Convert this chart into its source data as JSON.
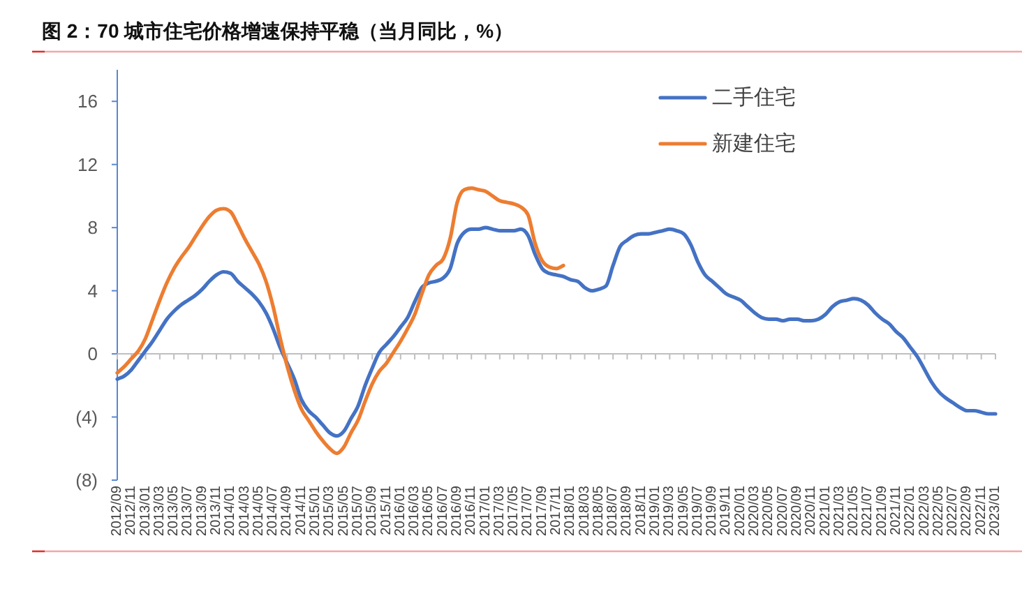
{
  "chart_data": {
    "type": "line",
    "title": "图 2：70 城市住宅价格增速保持平稳（当月同比，%）",
    "categories": [
      "2012/09",
      null,
      "2012/11",
      null,
      "2013/01",
      null,
      "2013/03",
      null,
      "2013/05",
      null,
      "2013/07",
      null,
      "2013/09",
      null,
      "2013/11",
      null,
      "2014/01",
      null,
      "2014/03",
      null,
      "2014/05",
      null,
      "2014/07",
      null,
      "2014/09",
      null,
      "2014/11",
      null,
      "2015/01",
      null,
      "2015/03",
      null,
      "2015/05",
      null,
      "2015/07",
      null,
      "2015/09",
      null,
      "2015/11",
      null,
      "2016/01",
      null,
      "2016/03",
      null,
      "2016/05",
      null,
      "2016/07",
      null,
      "2016/09",
      null,
      "2016/11",
      null,
      "2017/01",
      null,
      "2017/03",
      null,
      "2017/05",
      null,
      "2017/07",
      null,
      "2017/09",
      null,
      "2017/11",
      null,
      "2018/01",
      null,
      "2018/03",
      null,
      "2018/05",
      null,
      "2018/07",
      null,
      "2018/09",
      null,
      "2018/11",
      null,
      "2019/01",
      null,
      "2019/03",
      null,
      "2019/05",
      null,
      "2019/07",
      null,
      "2019/09",
      null,
      "2019/11",
      null,
      "2020/01",
      null,
      "2020/03",
      null,
      "2020/05",
      null,
      "2020/07",
      null,
      "2020/09",
      null,
      "2020/11",
      null,
      "2021/01",
      null,
      "2021/03",
      null,
      "2021/05",
      null,
      "2021/07",
      null,
      "2021/09",
      null,
      "2021/11",
      null,
      "2022/01",
      null,
      "2022/03",
      null,
      "2022/05",
      null,
      "2022/07",
      null,
      "2022/09",
      null,
      "2022/11",
      null,
      "2023/01"
    ],
    "series": [
      {
        "name": "二手住宅",
        "color": "#4472c4",
        "values": [
          -1.6,
          -1.4,
          -1.0,
          -0.4,
          0.2,
          0.8,
          1.5,
          2.2,
          2.7,
          3.1,
          3.4,
          3.7,
          4.1,
          4.6,
          5.0,
          5.2,
          5.1,
          4.6,
          4.2,
          3.8,
          3.3,
          2.6,
          1.6,
          0.4,
          -0.6,
          -1.6,
          -2.9,
          -3.6,
          -4.0,
          -4.5,
          -5.0,
          -5.2,
          -4.9,
          -4.1,
          -3.3,
          -2.0,
          -0.9,
          0.1,
          0.6,
          1.1,
          1.7,
          2.3,
          3.3,
          4.2,
          4.5,
          4.6,
          4.8,
          5.4,
          7.0,
          7.7,
          7.9,
          7.9,
          8.0,
          7.9,
          7.8,
          7.8,
          7.8,
          7.9,
          7.5,
          6.3,
          5.4,
          5.1,
          5.0,
          4.9,
          4.7,
          4.6,
          4.2,
          4.0,
          4.1,
          4.3,
          5.6,
          6.8,
          7.2,
          7.5,
          7.6,
          7.6,
          7.7,
          7.8,
          7.9,
          7.8,
          7.6,
          6.9,
          5.8,
          5.0,
          4.6,
          4.2,
          3.8,
          3.6,
          3.4,
          3.0,
          2.6,
          2.3,
          2.2,
          2.2,
          2.1,
          2.2,
          2.2,
          2.1,
          2.1,
          2.2,
          2.5,
          3.0,
          3.3,
          3.4,
          3.5,
          3.4,
          3.1,
          2.6,
          2.2,
          1.9,
          1.4,
          1.0,
          0.4,
          -0.2,
          -1.0,
          -1.8,
          -2.4,
          -2.8,
          -3.1,
          -3.4,
          -3.6,
          -3.6,
          -3.7,
          -3.8,
          -3.8
        ]
      },
      {
        "name": "新建住宅",
        "color": "#ed7d31",
        "values": [
          -1.2,
          -0.8,
          -0.3,
          0.2,
          1.0,
          2.2,
          3.4,
          4.5,
          5.4,
          6.1,
          6.7,
          7.4,
          8.1,
          8.7,
          9.1,
          9.2,
          9.0,
          8.2,
          7.3,
          6.5,
          5.7,
          4.6,
          3.0,
          1.0,
          -0.8,
          -2.3,
          -3.5,
          -4.2,
          -4.9,
          -5.5,
          -6.0,
          -6.3,
          -5.9,
          -5.0,
          -4.2,
          -3.0,
          -1.9,
          -1.1,
          -0.6,
          0.1,
          0.8,
          1.6,
          2.5,
          3.8,
          5.0,
          5.6,
          6.0,
          7.3,
          9.6,
          10.4,
          10.5,
          10.4,
          10.3,
          10.0,
          9.7,
          9.6,
          9.5,
          9.3,
          8.8,
          7.0,
          5.9,
          5.5,
          5.4,
          5.6,
          null,
          null,
          null,
          null,
          null,
          null,
          null,
          null,
          null,
          null,
          null,
          null,
          null,
          null,
          null,
          null,
          null,
          null,
          null,
          null,
          null,
          null,
          null,
          null,
          null,
          null,
          null,
          null,
          null,
          null,
          null,
          null,
          null,
          null,
          null,
          null,
          null,
          null,
          null,
          null,
          null,
          null,
          null,
          null,
          null,
          null,
          null,
          null,
          null,
          null,
          null,
          null,
          null,
          null,
          null,
          null,
          null,
          null,
          null,
          null,
          null
        ]
      }
    ],
    "ylim": [
      -8,
      18
    ],
    "yticks": [
      {
        "value": -8,
        "label": "(8)"
      },
      {
        "value": -4,
        "label": "(4)"
      },
      0,
      4,
      8,
      12,
      16
    ],
    "legend": "top right",
    "line_style": "solid"
  }
}
